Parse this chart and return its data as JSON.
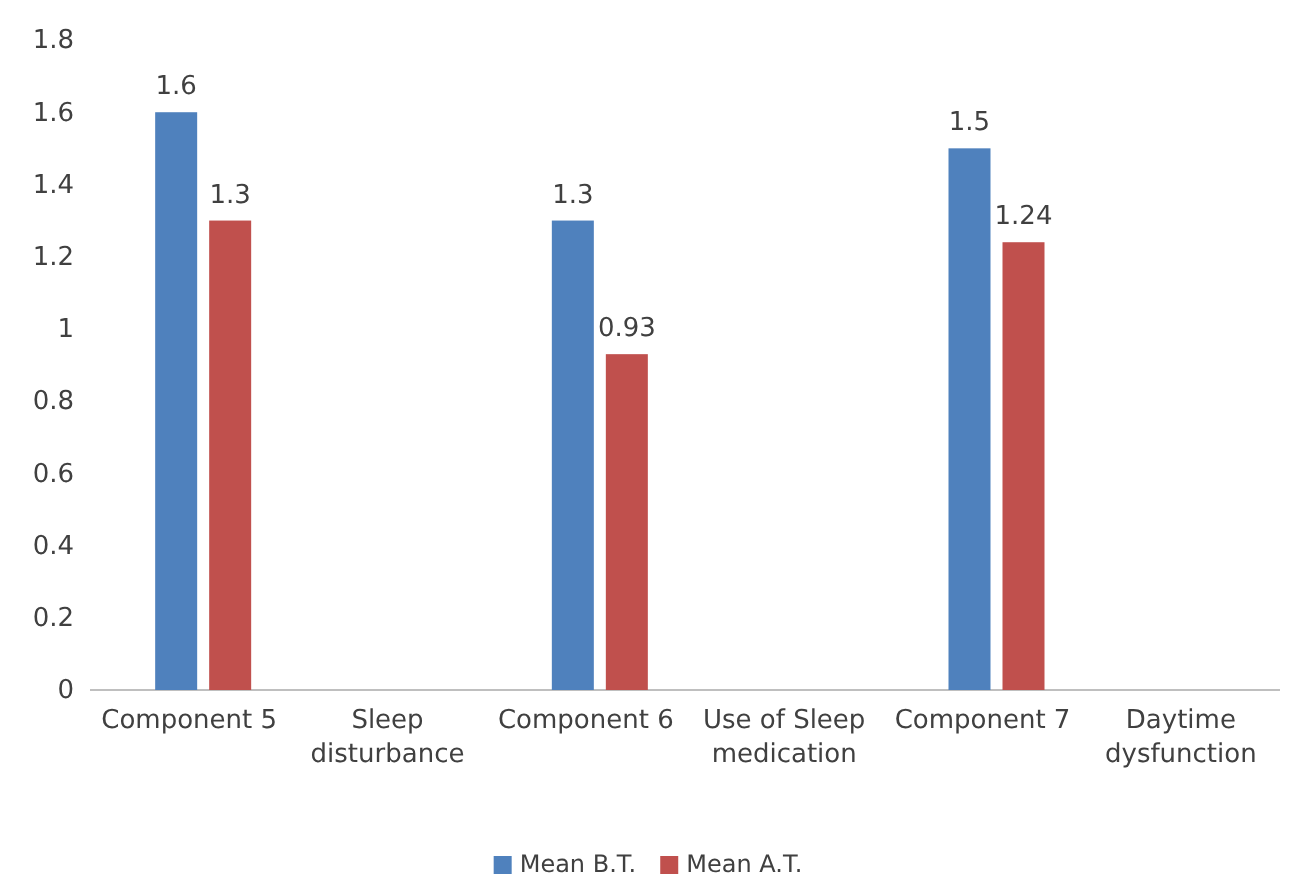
{
  "chart_data": {
    "type": "bar",
    "categories": [
      "Component 5",
      "Sleep disturbance",
      "Component 6",
      "Use of Sleep medication",
      "Component 7",
      "Daytime dysfunction"
    ],
    "series": [
      {
        "name": "Mean B.T.",
        "color": "#4f81bd",
        "values": [
          1.6,
          null,
          1.3,
          null,
          1.5,
          null
        ]
      },
      {
        "name": "Mean A.T.",
        "color": "#c0504d",
        "values": [
          1.3,
          null,
          0.93,
          null,
          1.24,
          null
        ]
      }
    ],
    "ylim": [
      0,
      1.8
    ],
    "yticks": [
      0,
      0.2,
      0.4,
      0.6,
      0.8,
      1,
      1.2,
      1.4,
      1.6,
      1.8
    ],
    "grid": false,
    "legend": "bottom",
    "data_labels": true
  }
}
